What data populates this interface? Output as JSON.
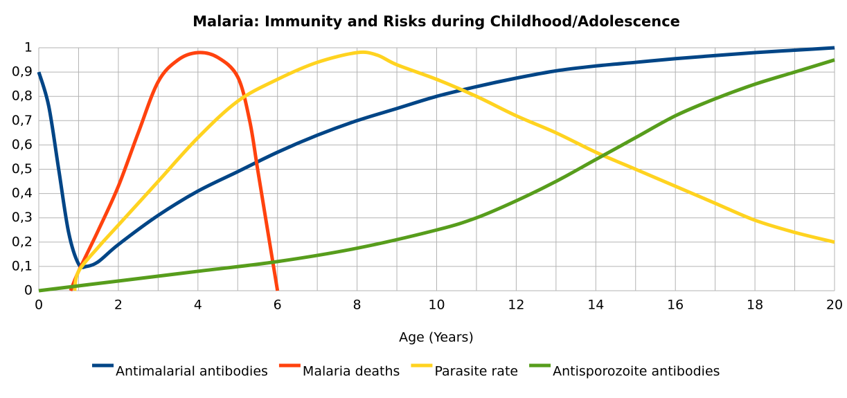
{
  "chart_data": {
    "type": "line",
    "title": "Malaria: Immunity and Risks during Childhood/Adolescence",
    "x_label": "Age (Years)",
    "xlim": [
      0,
      20
    ],
    "xticks": [
      0,
      2,
      4,
      6,
      8,
      10,
      12,
      14,
      16,
      18,
      20
    ],
    "x_minor_ticks": [
      1,
      3,
      5,
      7,
      9,
      11,
      13,
      15,
      17,
      19
    ],
    "ylim": [
      0,
      1
    ],
    "yticks": [
      0,
      {
        "value": 0.1,
        "label": "0,1"
      },
      {
        "value": 0.2,
        "label": "0,2"
      },
      {
        "value": 0.3,
        "label": "0,3"
      },
      {
        "value": 0.4,
        "label": "0,4"
      },
      {
        "value": 0.5,
        "label": "0,5"
      },
      {
        "value": 0.6,
        "label": "0,6"
      },
      {
        "value": 0.7,
        "label": "0,7"
      },
      {
        "value": 0.8,
        "label": "0,8"
      },
      {
        "value": 0.9,
        "label": "0,9"
      },
      1
    ],
    "grid": true,
    "legend": "bottom",
    "series": [
      {
        "name": "Antimalarial antibodies",
        "color": "#004586",
        "x": [
          0,
          0.25,
          0.5,
          0.75,
          1,
          1.2,
          1.5,
          2,
          3,
          4,
          5,
          6,
          7,
          8,
          9,
          10,
          11,
          12,
          13,
          14,
          15,
          16,
          17,
          18,
          19,
          20
        ],
        "values": [
          0.9,
          0.76,
          0.5,
          0.24,
          0.11,
          0.1,
          0.12,
          0.19,
          0.31,
          0.41,
          0.49,
          0.57,
          0.64,
          0.7,
          0.75,
          0.8,
          0.84,
          0.875,
          0.905,
          0.925,
          0.94,
          0.955,
          0.968,
          0.98,
          0.99,
          1.0
        ]
      },
      {
        "name": "Malaria deaths",
        "color": "#ff420e",
        "x": [
          0.8,
          1,
          1.5,
          2,
          2.5,
          3,
          3.5,
          4,
          4.5,
          5,
          5.3,
          5.5,
          5.75,
          6
        ],
        "values": [
          0,
          0.08,
          0.25,
          0.43,
          0.65,
          0.86,
          0.95,
          0.98,
          0.96,
          0.88,
          0.7,
          0.5,
          0.25,
          0
        ]
      },
      {
        "name": "Parasite rate",
        "color": "#ffd320",
        "x": [
          0.9,
          1,
          1.5,
          2,
          3,
          4,
          5,
          6,
          7,
          8,
          8.5,
          9,
          10,
          11,
          12,
          13,
          14,
          15,
          16,
          17,
          18,
          19,
          20
        ],
        "values": [
          0,
          0.08,
          0.18,
          0.27,
          0.45,
          0.63,
          0.78,
          0.87,
          0.94,
          0.98,
          0.97,
          0.93,
          0.87,
          0.8,
          0.72,
          0.65,
          0.57,
          0.5,
          0.43,
          0.36,
          0.29,
          0.24,
          0.2
        ]
      },
      {
        "name": "Antisporozoite antibodies",
        "color": "#579d1c",
        "x": [
          0,
          2,
          4,
          6,
          8,
          10,
          11,
          12,
          13,
          14,
          15,
          16,
          17,
          18,
          19,
          20
        ],
        "values": [
          0,
          0.04,
          0.08,
          0.12,
          0.175,
          0.25,
          0.3,
          0.37,
          0.45,
          0.54,
          0.63,
          0.72,
          0.79,
          0.85,
          0.9,
          0.95
        ]
      }
    ]
  }
}
